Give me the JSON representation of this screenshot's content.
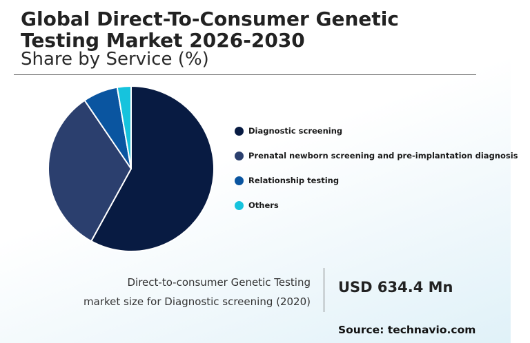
{
  "title": "Global Direct-To-Consumer Genetic Testing Market 2026-2030",
  "subtitle": "Share by Service (%)",
  "chart_data": {
    "type": "pie",
    "title": "Share by Service (%)",
    "categories": [
      "Diagnostic screening",
      "Prenatal newborn screening and pre-implantation diagnosis",
      "Relationship testing",
      "Others"
    ],
    "values": [
      58,
      32.5,
      6.8,
      2.7
    ],
    "colors": [
      "#081b42",
      "#2b3f6e",
      "#0a55a0",
      "#16c3dd"
    ],
    "legend_position": "right"
  },
  "stat": {
    "label_line1": "Direct-to-consumer Genetic Testing",
    "label_line2": "market size for Diagnostic screening (2020)",
    "value": "USD 634.4 Mn"
  },
  "source": "Source: technavio.com"
}
